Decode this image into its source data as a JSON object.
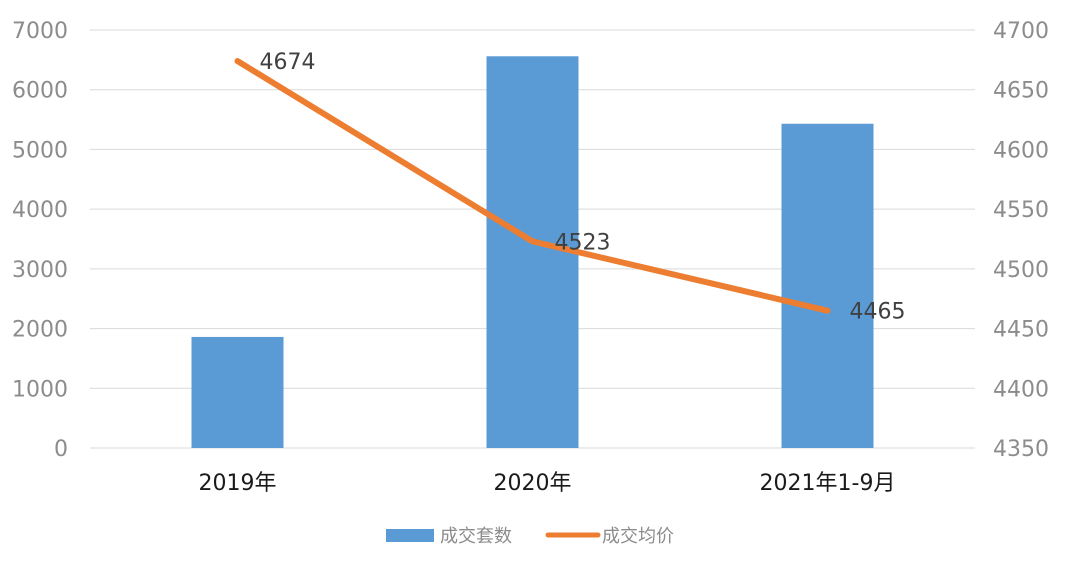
{
  "chart_data": {
    "type": "bar",
    "categories": [
      "2019年",
      "2020年",
      "2021年1-9月"
    ],
    "series": [
      {
        "name": "成交套数",
        "type": "bar",
        "axis": "left",
        "values": [
          1860,
          6560,
          5430
        ],
        "color": "#5b9bd5"
      },
      {
        "name": "成交均价",
        "type": "line",
        "axis": "right",
        "values": [
          4674,
          4523,
          4465
        ],
        "color": "#ed7d31",
        "data_labels": [
          "4674",
          "4523",
          "4465"
        ]
      }
    ],
    "y_left": {
      "ylim": [
        0,
        7000
      ],
      "ticks": [
        "0",
        "1000",
        "2000",
        "3000",
        "4000",
        "5000",
        "6000",
        "7000"
      ]
    },
    "y_right": {
      "ylim": [
        4350,
        4700
      ],
      "ticks": [
        "4350",
        "4400",
        "4450",
        "4500",
        "4550",
        "4600",
        "4650",
        "4700"
      ]
    },
    "grid": true,
    "legend": {
      "placement": "bottom",
      "entries": [
        "成交套数",
        "成交均价"
      ]
    },
    "title": "",
    "xlabel": "",
    "ylabel": ""
  }
}
